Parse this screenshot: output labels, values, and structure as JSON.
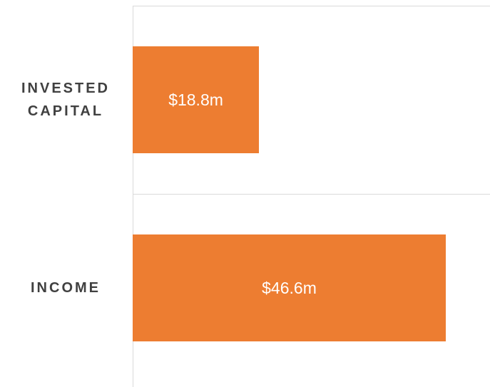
{
  "chart_data": {
    "type": "bar",
    "orientation": "horizontal",
    "categories": [
      "INVESTED CAPITAL",
      "INCOME"
    ],
    "values": [
      18.8,
      46.6
    ],
    "value_labels": [
      "$18.8m",
      "$46.6m"
    ],
    "color": "#ed7d31"
  }
}
